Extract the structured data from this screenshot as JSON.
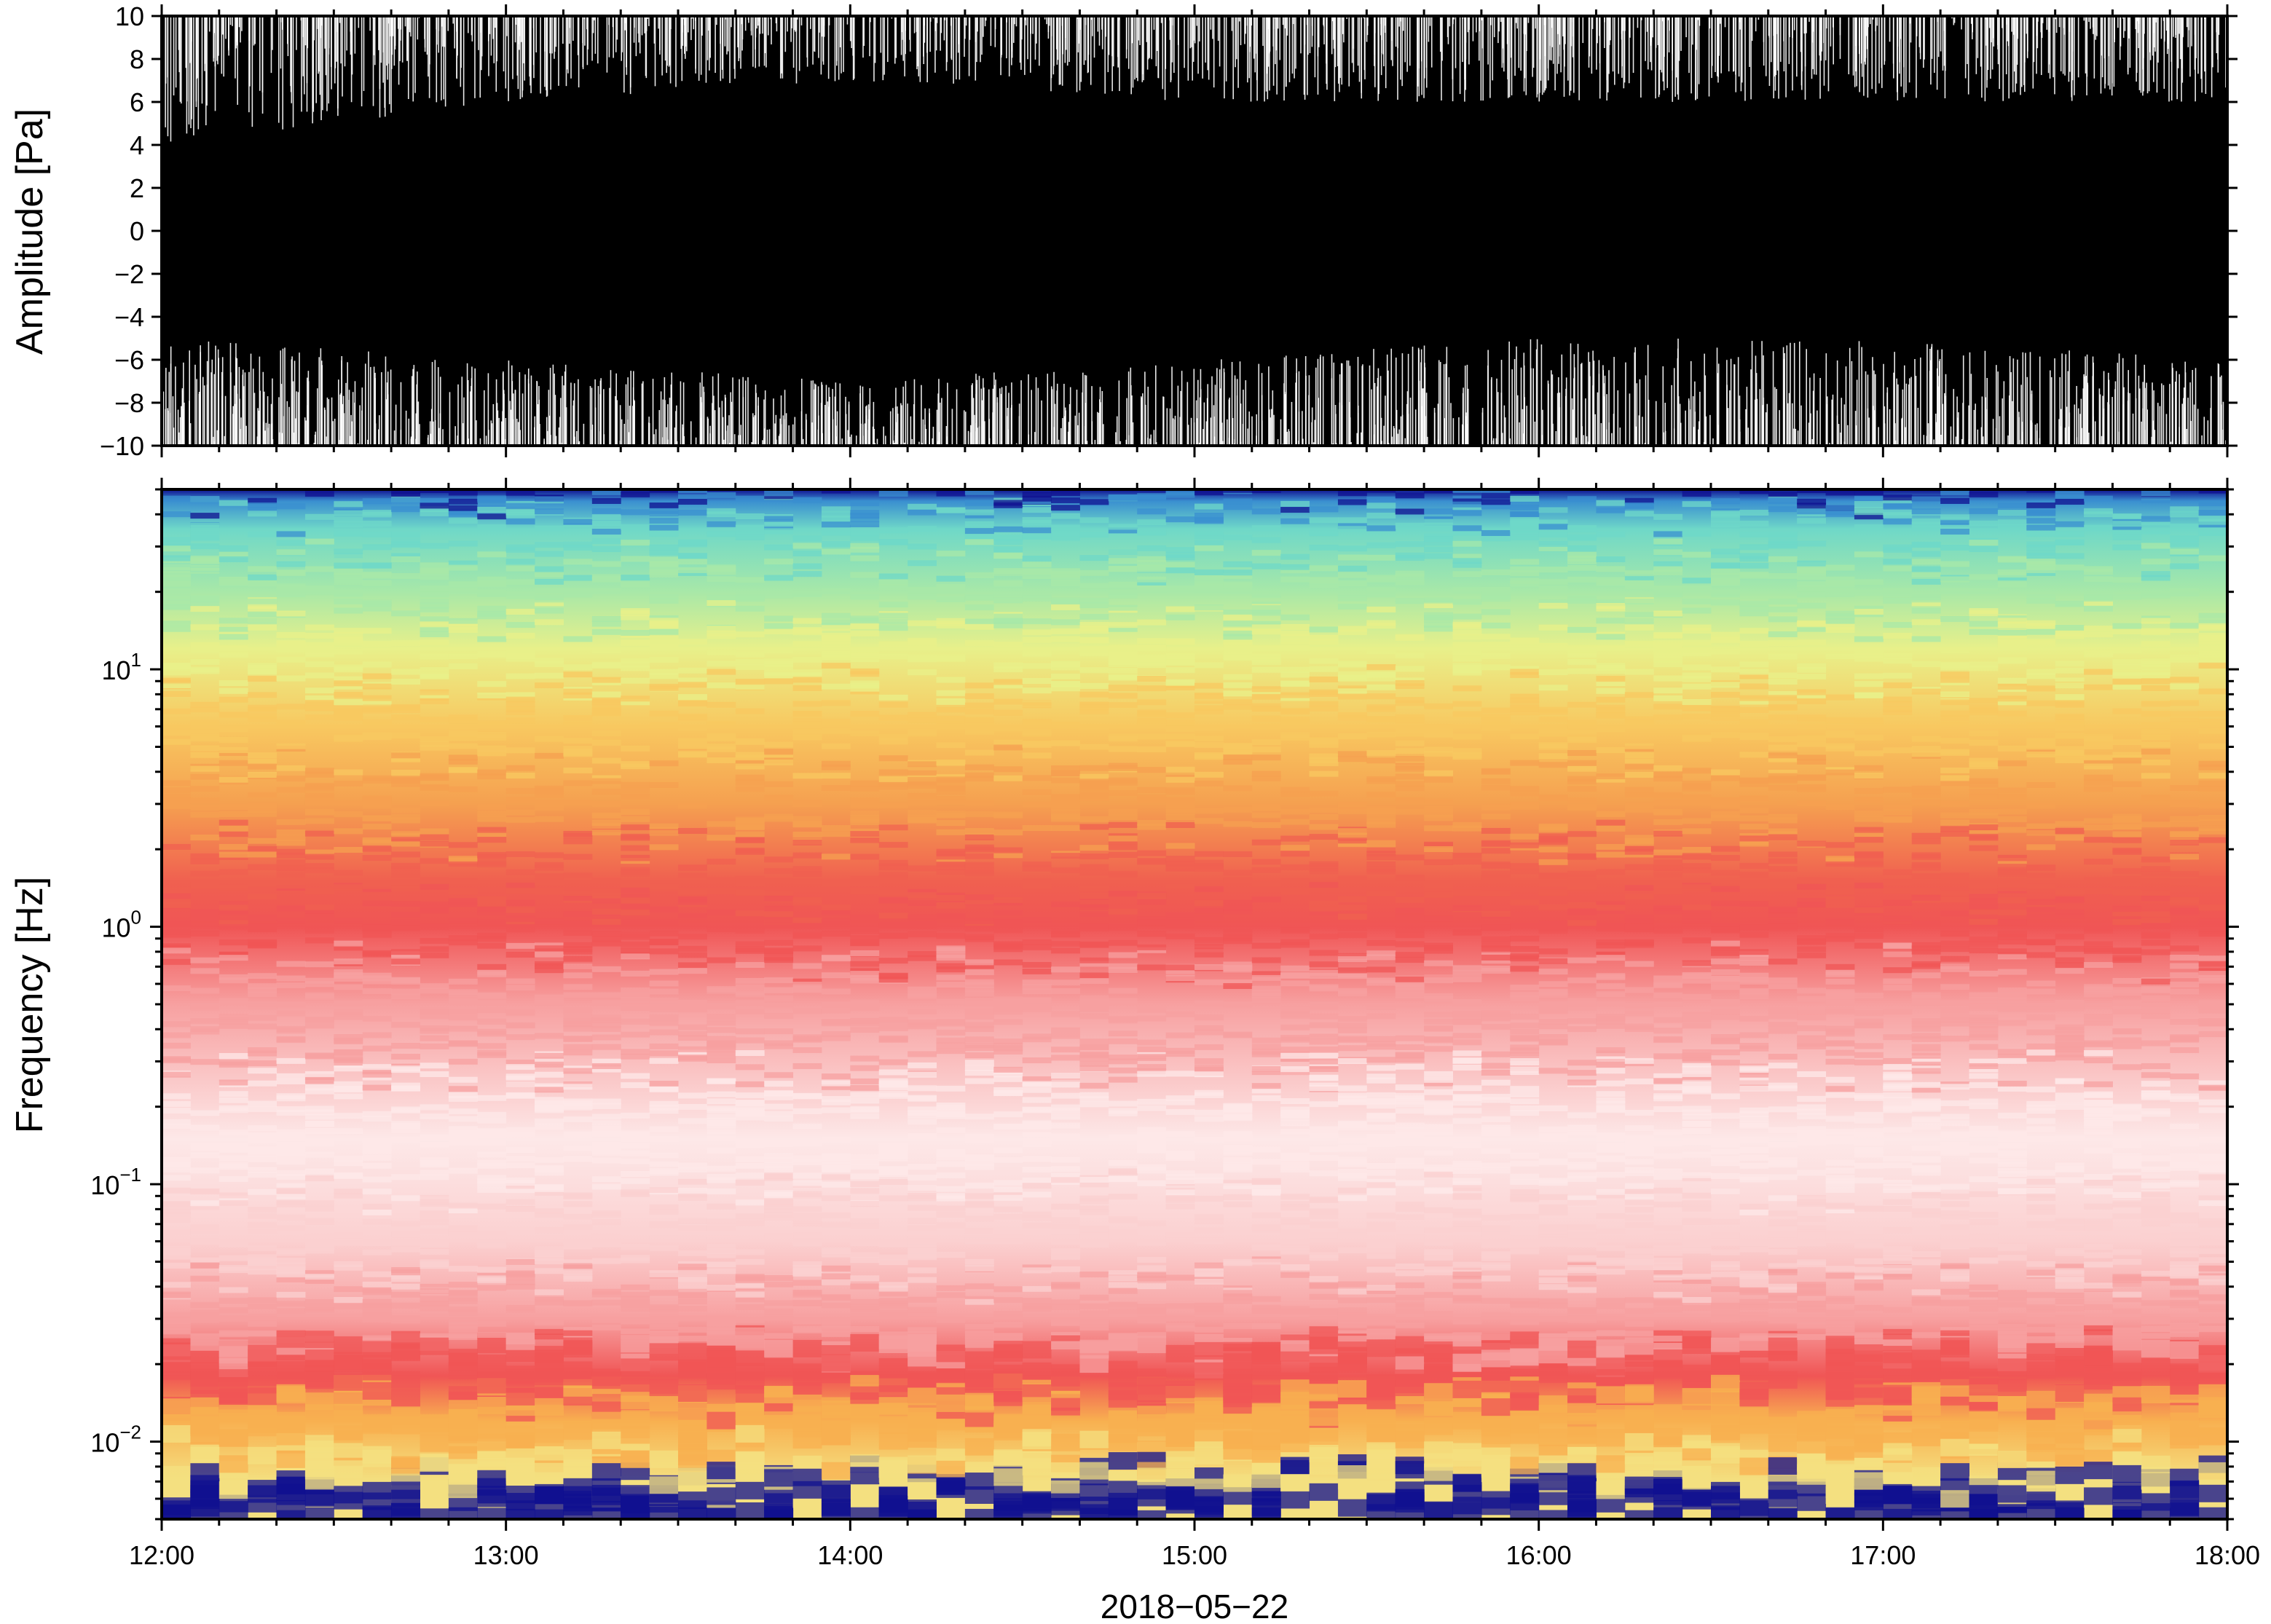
{
  "chart_data": [
    {
      "type": "line",
      "panel": "waveform",
      "ylabel": "Amplitude [Pa]",
      "ylim": [
        -10,
        10
      ],
      "y_ticks": [
        "10",
        "8",
        "6",
        "4",
        "2",
        "0",
        "−2",
        "−4",
        "−6",
        "−8",
        "−10"
      ],
      "x_range": [
        "12:00",
        "18:00"
      ],
      "series_color": "#000000",
      "envelope_upper": [
        {
          "t": "12:00",
          "v": 10
        },
        {
          "t": "13:00",
          "v": 10
        },
        {
          "t": "14:00",
          "v": 10
        },
        {
          "t": "15:00",
          "v": 10
        },
        {
          "t": "16:00",
          "v": 10
        },
        {
          "t": "17:00",
          "v": 10
        },
        {
          "t": "18:00",
          "v": 10
        }
      ],
      "envelope_lower": [
        {
          "t": "12:00",
          "v": -10
        },
        {
          "t": "13:00",
          "v": -10
        },
        {
          "t": "14:00",
          "v": -10
        },
        {
          "t": "15:00",
          "v": -10
        },
        {
          "t": "16:00",
          "v": -10
        },
        {
          "t": "17:00",
          "v": -10
        },
        {
          "t": "18:00",
          "v": -10
        }
      ],
      "gaps_top_from_y": [
        {
          "t": "12:00",
          "v": 4
        },
        {
          "t": "13:00",
          "v": 6
        },
        {
          "t": "14:00",
          "v": 7
        },
        {
          "t": "15:00",
          "v": 6
        },
        {
          "t": "16:00",
          "v": 6
        },
        {
          "t": "17:00",
          "v": 6
        },
        {
          "t": "18:00",
          "v": 6
        }
      ],
      "gaps_bottom_from_y": [
        {
          "t": "12:00",
          "v": -5
        },
        {
          "t": "13:00",
          "v": -6
        },
        {
          "t": "14:00",
          "v": -7
        },
        {
          "t": "15:00",
          "v": -6
        },
        {
          "t": "16:00",
          "v": -5
        },
        {
          "t": "17:00",
          "v": -5
        },
        {
          "t": "18:00",
          "v": -6
        }
      ],
      "grid": false
    },
    {
      "type": "heatmap",
      "panel": "spectrogram",
      "ylabel": "Frequency [Hz]",
      "y_scale": "log",
      "ylim_hz": [
        0.005,
        50
      ],
      "y_ticks": [
        {
          "value": 10,
          "base": "10",
          "exp": "1"
        },
        {
          "value": 1,
          "base": "10",
          "exp": "0"
        },
        {
          "value": 0.1,
          "base": "10",
          "exp": "−1"
        },
        {
          "value": 0.01,
          "base": "10",
          "exp": "−2"
        }
      ],
      "x_ticks": [
        "12:00",
        "13:00",
        "14:00",
        "15:00",
        "16:00",
        "17:00",
        "18:00"
      ],
      "xlabel": "2018−05−22",
      "colormap": [
        {
          "f_hz": 50,
          "color": "#101090"
        },
        {
          "f_hz": 45,
          "color": "#3a8fd0"
        },
        {
          "f_hz": 35,
          "color": "#6fd8c8"
        },
        {
          "f_hz": 20,
          "color": "#a8e8a8"
        },
        {
          "f_hz": 12,
          "color": "#e8f08a"
        },
        {
          "f_hz": 6,
          "color": "#f8c860"
        },
        {
          "f_hz": 3,
          "color": "#f5a050"
        },
        {
          "f_hz": 1.5,
          "color": "#f06050"
        },
        {
          "f_hz": 1.0,
          "color": "#f05555"
        },
        {
          "f_hz": 0.5,
          "color": "#f7a0a0"
        },
        {
          "f_hz": 0.15,
          "color": "#fde8e8"
        },
        {
          "f_hz": 0.06,
          "color": "#fbd0d0"
        },
        {
          "f_hz": 0.03,
          "color": "#f7a0a0"
        },
        {
          "f_hz": 0.018,
          "color": "#f05555"
        },
        {
          "f_hz": 0.012,
          "color": "#f8b050"
        },
        {
          "f_hz": 0.007,
          "color": "#f4e080"
        }
      ],
      "grid": false
    }
  ]
}
